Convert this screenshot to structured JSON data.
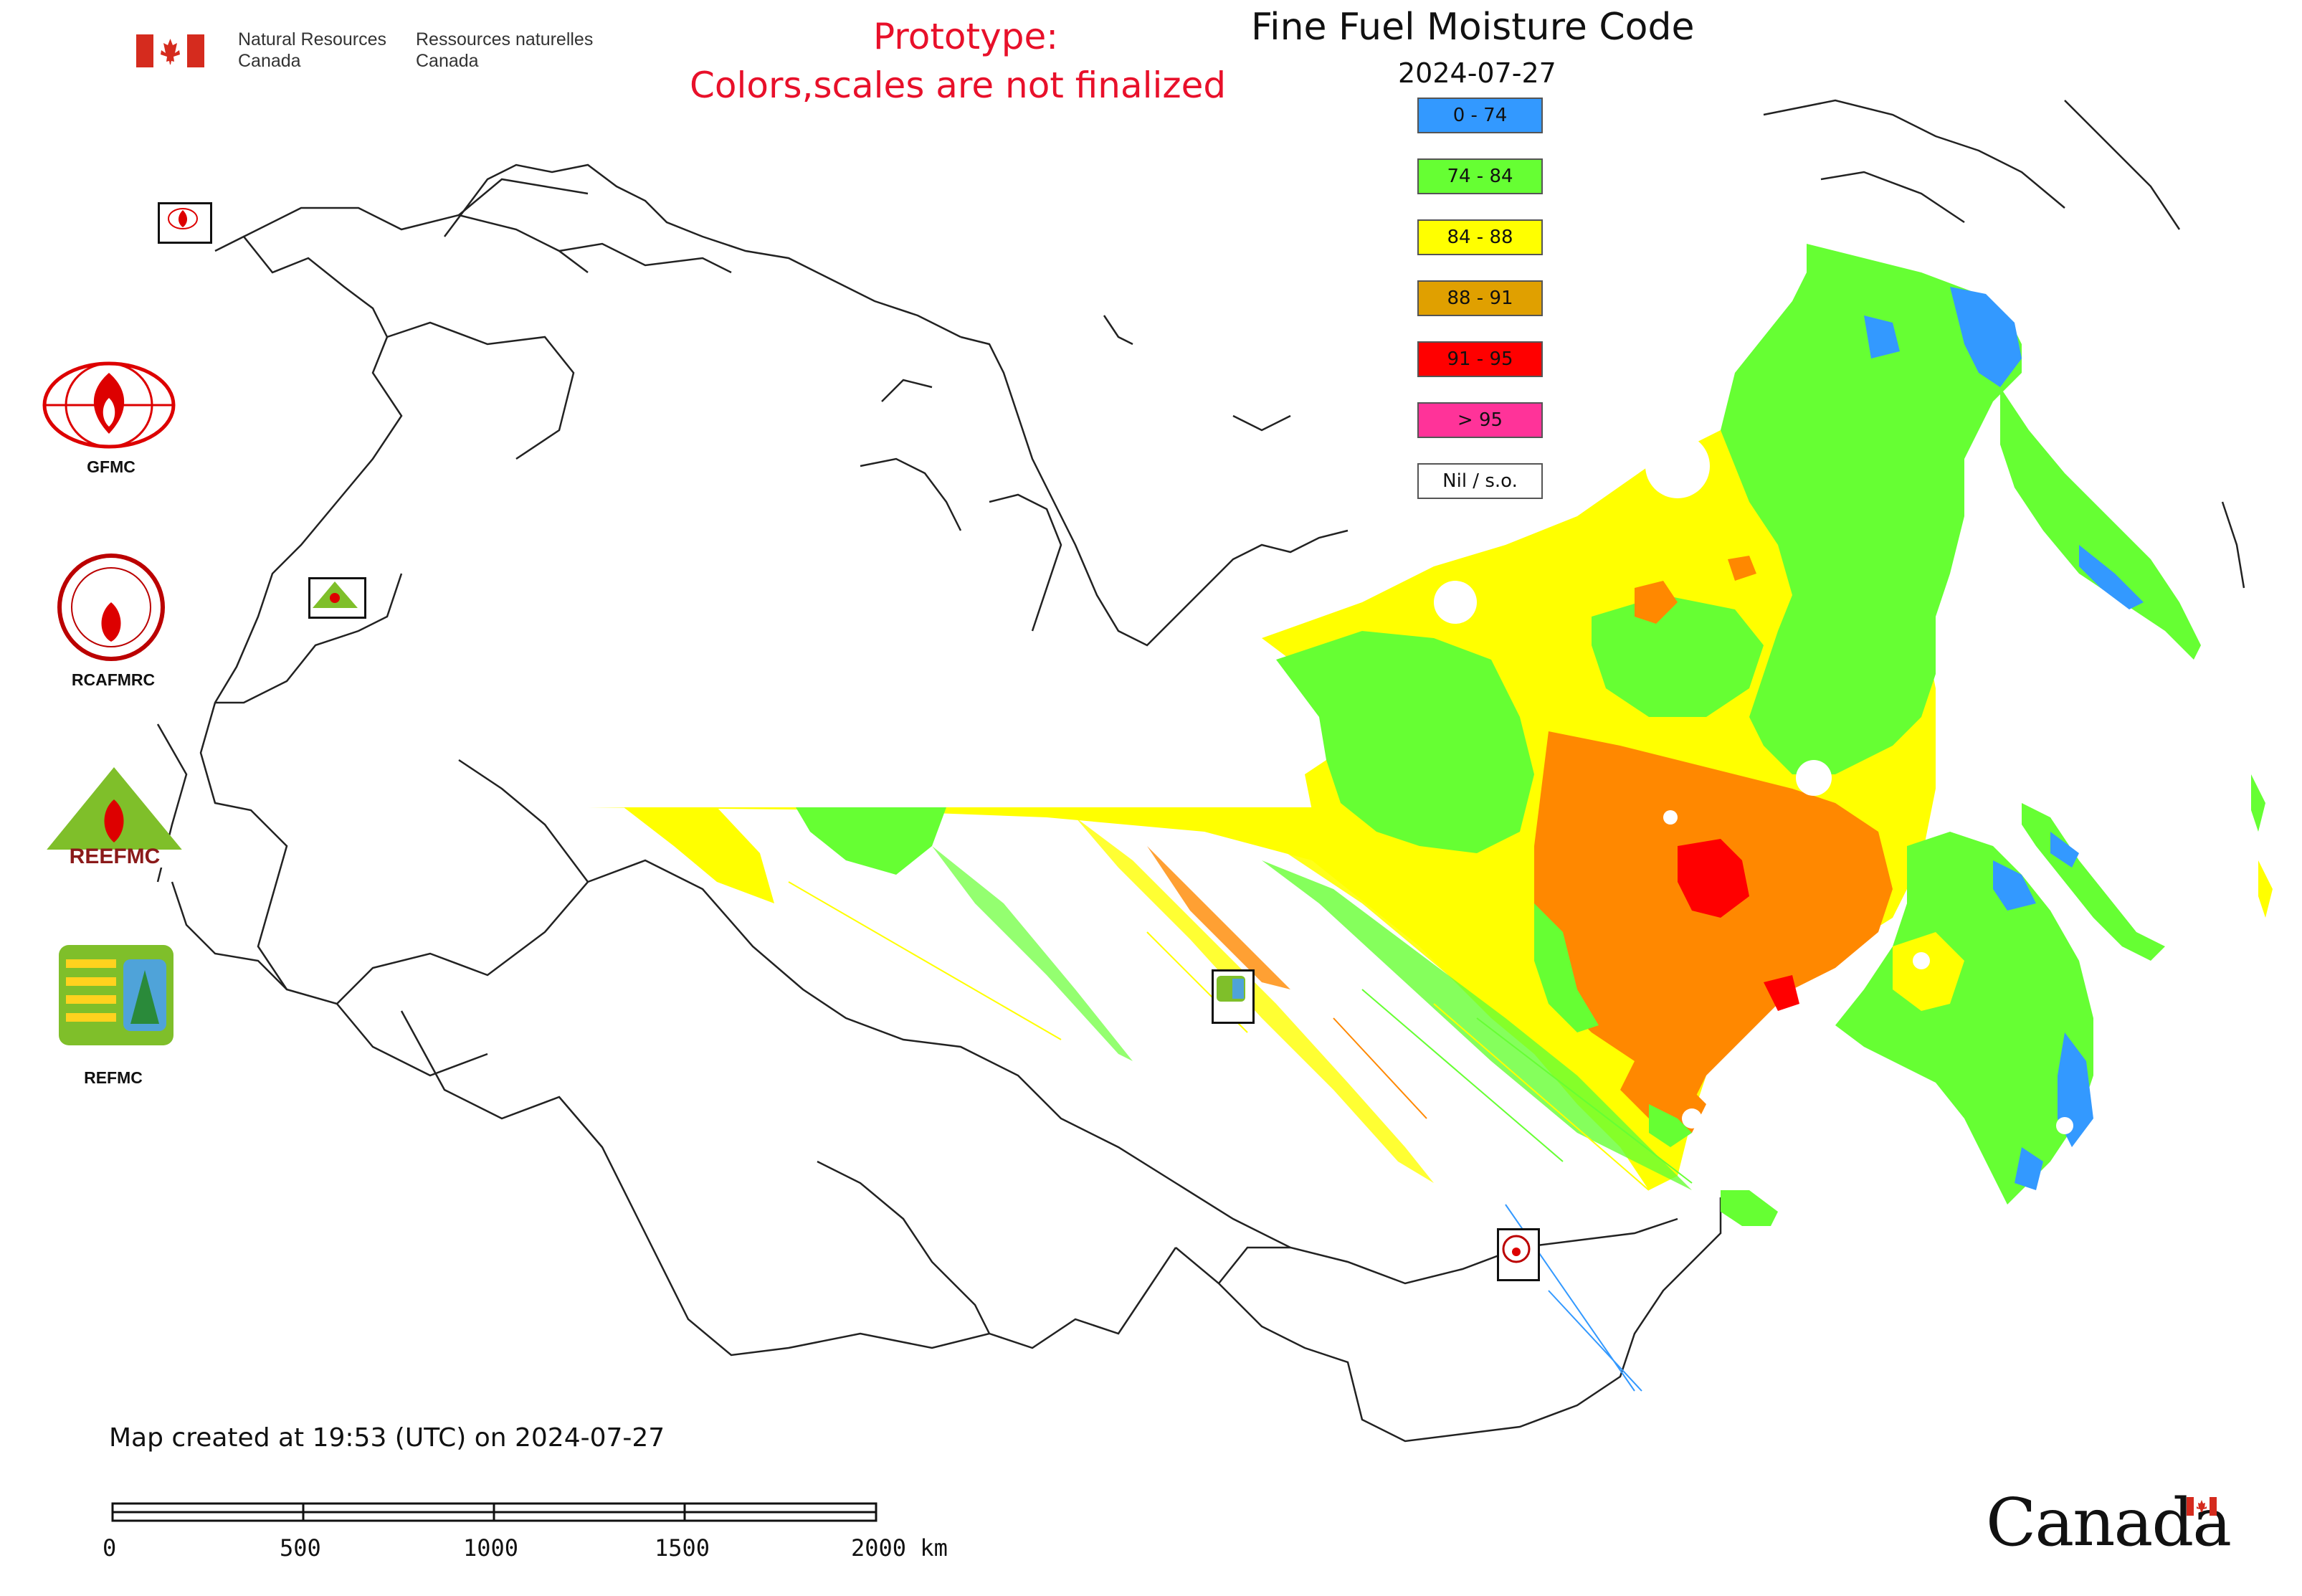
{
  "map": {
    "title": "Fine Fuel Moisture Code",
    "date": "2024-07-27",
    "prototype_line1": "Prototype:",
    "prototype_line2": "Colors,scales are not finalized",
    "created_note": "Map created at 19:53 (UTC) on 2024-07-27"
  },
  "legend": [
    {
      "label": "0 - 74",
      "color": "#3399ff"
    },
    {
      "label": "74 - 84",
      "color": "#66ff33"
    },
    {
      "label": "84 - 88",
      "color": "#ffff00"
    },
    {
      "label": "88 - 91",
      "color": "#e0a000"
    },
    {
      "label": "91 - 95",
      "color": "#ff0000"
    },
    {
      "label": "> 95",
      "color": "#ff3399"
    },
    {
      "label": "Nil / s.o.",
      "color": "#ffffff"
    }
  ],
  "agency": {
    "name_en_line1": "Natural Resources",
    "name_en_line2": "Canada",
    "name_fr_line1": "Ressources naturelles",
    "name_fr_line2": "Canada",
    "wordmark": "Canada"
  },
  "logos": [
    {
      "label": "GFMC",
      "icon": "gfmc-logo-icon"
    },
    {
      "label": "RCAFMRC",
      "icon": "rcafmrc-logo-icon"
    },
    {
      "label": "REEFMC",
      "icon": "reefmc-logo-icon"
    },
    {
      "label": "REFMC",
      "icon": "refmc-logo-icon"
    }
  ],
  "scale_bar": {
    "ticks": [
      "0",
      "500",
      "1000",
      "1500",
      "2000 km"
    ]
  },
  "colors": {
    "prototype_text": "#e8102a",
    "orange_fill": "#ff8800"
  }
}
